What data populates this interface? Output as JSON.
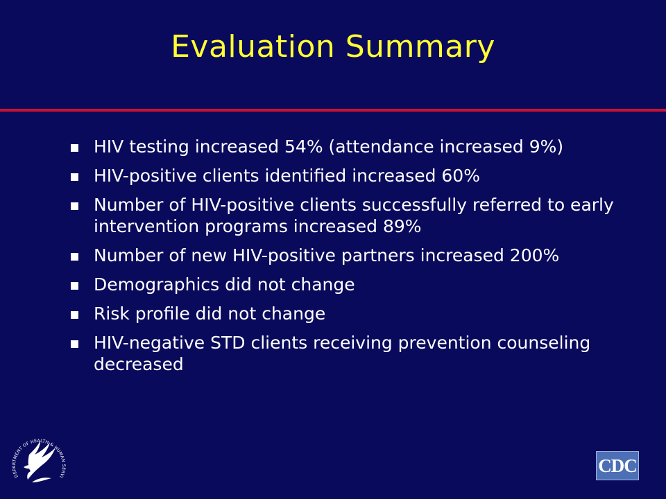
{
  "slide": {
    "title": "Evaluation Summary",
    "bullets": [
      "HIV testing increased 54% (attendance increased 9%)",
      "HIV-positive clients identified increased 60%",
      "Number of HIV-positive clients successfully referred to early intervention programs increased 89%",
      "Number of new HIV-positive partners increased 200%",
      "Demographics did not change",
      "Risk profile did not change",
      "HIV-negative STD clients receiving prevention counseling decreased"
    ]
  },
  "footer": {
    "hhs_seal_text": "DEPARTMENT OF HEALTH & HUMAN SERVICES · USA",
    "cdc_logo_text": "CDC"
  },
  "colors": {
    "background": "#0a0a5c",
    "title": "#ffff33",
    "rule": "#cc1133",
    "body_text": "#ffffff",
    "cdc_logo": "#4c6fb5"
  }
}
